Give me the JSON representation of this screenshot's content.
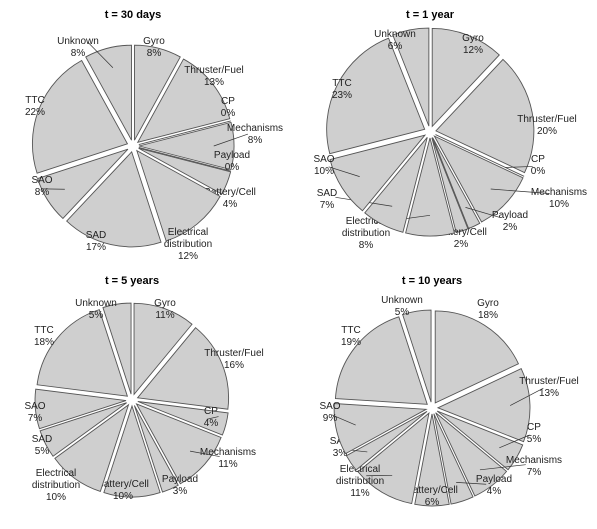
{
  "colors": {
    "wedge_fill": "#cfcfcf",
    "wedge_stroke": "#555555",
    "text": "#222222"
  },
  "chart_data": [
    {
      "type": "pie",
      "title": "t = 30 days",
      "slices": [
        {
          "name": "Gyro",
          "value": 8,
          "label": "8%"
        },
        {
          "name": "Thruster/Fuel",
          "value": 13,
          "label": "13%"
        },
        {
          "name": "CP",
          "value": 0,
          "label": "0%"
        },
        {
          "name": "Mechanisms",
          "value": 8,
          "label": "8%"
        },
        {
          "name": "Payload",
          "value": 0,
          "label": "0%"
        },
        {
          "name": "Battery/Cell",
          "value": 4,
          "label": "4%"
        },
        {
          "name": "Electrical distribution",
          "line1": "Electrical",
          "line2": "distribution",
          "value": 12,
          "label": "12%"
        },
        {
          "name": "SAD",
          "value": 17,
          "label": "17%"
        },
        {
          "name": "SAO",
          "value": 8,
          "label": "8%"
        },
        {
          "name": "TTC",
          "value": 22,
          "label": "22%"
        },
        {
          "name": "Unknown",
          "value": 8,
          "label": "8%"
        }
      ]
    },
    {
      "type": "pie",
      "title": "t = 1 year",
      "slices": [
        {
          "name": "Gyro",
          "value": 12,
          "label": "12%"
        },
        {
          "name": "Thruster/Fuel",
          "value": 20,
          "label": "20%"
        },
        {
          "name": "CP",
          "value": 0,
          "label": "0%"
        },
        {
          "name": "Mechanisms",
          "value": 10,
          "label": "10%"
        },
        {
          "name": "Payload",
          "value": 2,
          "label": "2%"
        },
        {
          "name": "Battery/Cell",
          "value": 2,
          "label": "2%"
        },
        {
          "name": "Electrical distribution",
          "line1": "Electrical",
          "line2": "distribution",
          "value": 8,
          "label": "8%"
        },
        {
          "name": "SAD",
          "value": 7,
          "label": "7%"
        },
        {
          "name": "SAO",
          "value": 10,
          "label": "10%"
        },
        {
          "name": "TTC",
          "value": 23,
          "label": "23%"
        },
        {
          "name": "Unknown",
          "value": 6,
          "label": "6%"
        }
      ]
    },
    {
      "type": "pie",
      "title": "t = 5 years",
      "slices": [
        {
          "name": "Gyro",
          "value": 11,
          "label": "11%"
        },
        {
          "name": "Thruster/Fuel",
          "value": 16,
          "label": "16%"
        },
        {
          "name": "CP",
          "value": 4,
          "label": "4%"
        },
        {
          "name": "Mechanisms",
          "value": 11,
          "label": "11%"
        },
        {
          "name": "Payload",
          "value": 3,
          "label": "3%"
        },
        {
          "name": "Battery/Cell",
          "value": 10,
          "label": "10%"
        },
        {
          "name": "Electrical distribution",
          "line1": "Electrical",
          "line2": "distribution",
          "value": 10,
          "label": "10%"
        },
        {
          "name": "SAD",
          "value": 5,
          "label": "5%"
        },
        {
          "name": "SAO",
          "value": 7,
          "label": "7%"
        },
        {
          "name": "TTC",
          "value": 18,
          "label": "18%"
        },
        {
          "name": "Unknown",
          "value": 5,
          "label": "5%"
        }
      ]
    },
    {
      "type": "pie",
      "title": "t = 10 years",
      "slices": [
        {
          "name": "Gyro",
          "value": 18,
          "label": "18%"
        },
        {
          "name": "Thruster/Fuel",
          "value": 13,
          "label": "13%"
        },
        {
          "name": "CP",
          "value": 5,
          "label": "5%"
        },
        {
          "name": "Mechanisms",
          "value": 7,
          "label": "7%"
        },
        {
          "name": "Payload",
          "value": 4,
          "label": "4%"
        },
        {
          "name": "Battery/Cell",
          "value": 6,
          "label": "6%"
        },
        {
          "name": "Electrical distribution",
          "line1": "Electrical",
          "line2": "distribution",
          "value": 11,
          "label": "11%"
        },
        {
          "name": "SAD",
          "value": 3,
          "label": "3%"
        },
        {
          "name": "SAO",
          "value": 9,
          "label": "9%"
        },
        {
          "name": "TTC",
          "value": 19,
          "label": "19%"
        },
        {
          "name": "Unknown",
          "value": 5,
          "label": "5%"
        }
      ]
    }
  ]
}
